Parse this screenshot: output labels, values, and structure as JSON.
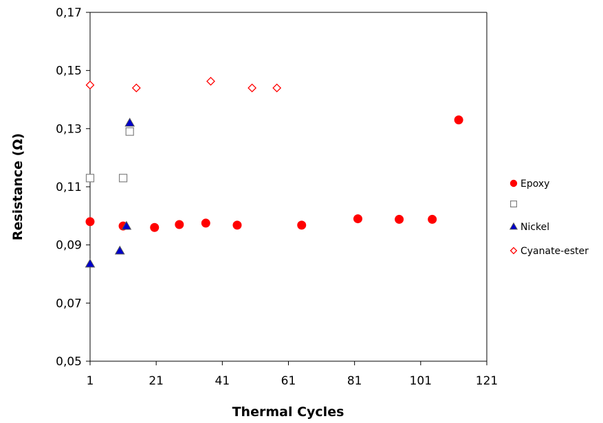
{
  "chart_data": {
    "type": "scatter",
    "title": "",
    "xlabel": "Thermal Cycles",
    "ylabel": "Resistance (Ω)",
    "xlim": [
      1,
      121
    ],
    "ylim": [
      0.05,
      0.17
    ],
    "x_ticks": [
      1,
      21,
      41,
      61,
      81,
      101,
      121
    ],
    "y_ticks": [
      0.05,
      0.07,
      0.09,
      0.11,
      0.13,
      0.15,
      0.17
    ],
    "y_tick_labels": [
      "0,05",
      "0,07",
      "0,09",
      "0,11",
      "0,13",
      "0,15",
      "0,17"
    ],
    "grid": false,
    "legend_position": "right",
    "series": [
      {
        "name": "Epoxy",
        "marker": "circle-filled",
        "color": "#ff0000",
        "points": [
          {
            "x": 1,
            "y": 0.098
          },
          {
            "x": 11,
            "y": 0.0965
          },
          {
            "x": 20.5,
            "y": 0.096
          },
          {
            "x": 28,
            "y": 0.097
          },
          {
            "x": 36,
            "y": 0.0975
          },
          {
            "x": 45.5,
            "y": 0.0968
          },
          {
            "x": 65,
            "y": 0.0968
          },
          {
            "x": 82,
            "y": 0.099
          },
          {
            "x": 94.5,
            "y": 0.0988
          },
          {
            "x": 104.5,
            "y": 0.0988
          },
          {
            "x": 112.5,
            "y": 0.133
          }
        ]
      },
      {
        "name": "",
        "marker": "square-open",
        "color": "#808080",
        "points": [
          {
            "x": 1,
            "y": 0.113
          },
          {
            "x": 11,
            "y": 0.113
          },
          {
            "x": 13,
            "y": 0.129
          }
        ]
      },
      {
        "name": "Nickel",
        "marker": "triangle-filled",
        "color": "#0000cc",
        "points": [
          {
            "x": 1,
            "y": 0.0835
          },
          {
            "x": 10,
            "y": 0.088
          },
          {
            "x": 12,
            "y": 0.0965
          },
          {
            "x": 13,
            "y": 0.132
          }
        ]
      },
      {
        "name": "Cyanate-ester",
        "marker": "diamond-open",
        "color": "#ff0000",
        "points": [
          {
            "x": 1,
            "y": 0.145
          },
          {
            "x": 15,
            "y": 0.144
          },
          {
            "x": 37.5,
            "y": 0.1463
          },
          {
            "x": 50,
            "y": 0.144
          },
          {
            "x": 57.5,
            "y": 0.144
          }
        ]
      }
    ]
  }
}
